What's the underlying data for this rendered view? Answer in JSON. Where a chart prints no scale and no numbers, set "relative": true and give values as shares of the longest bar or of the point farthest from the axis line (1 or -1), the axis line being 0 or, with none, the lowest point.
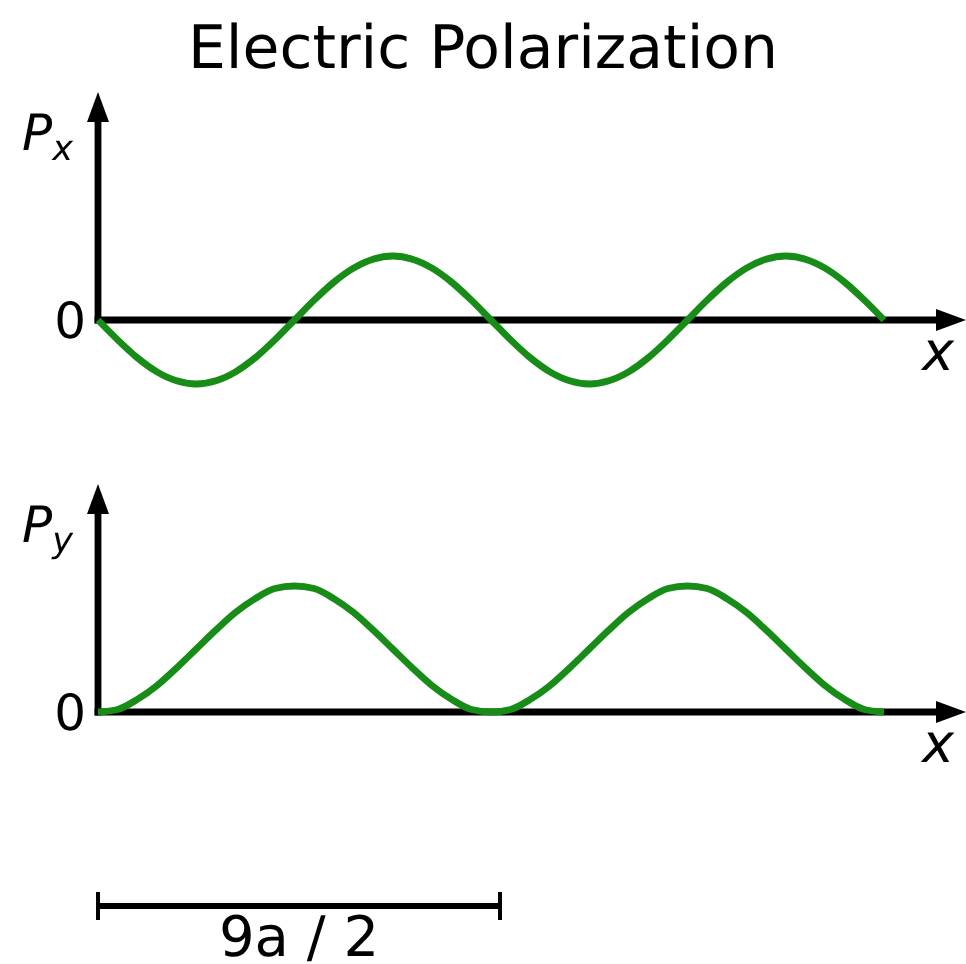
{
  "chart_data": [
    {
      "type": "line",
      "title": "Electric Polarization",
      "ylabel": "P$_{x}$",
      "xlabel": "x",
      "relative": true,
      "annotations": [
        "0"
      ],
      "categories": [
        null,
        null,
        null,
        null,
        null,
        null,
        null,
        null,
        null,
        null,
        null,
        null,
        null,
        null,
        null,
        null,
        null,
        null,
        null,
        null,
        null,
        null,
        null,
        null,
        null,
        null,
        null,
        null,
        null,
        null,
        null,
        null,
        null,
        null,
        null,
        null,
        null,
        null,
        null,
        null,
        null
      ],
      "series": [
        {
          "color": "#178c17",
          "values": [
            0,
            -0.31,
            -0.59,
            -0.81,
            -0.95,
            -1,
            -0.95,
            -0.81,
            -0.59,
            -0.31,
            0,
            0.31,
            0.59,
            0.81,
            0.95,
            1,
            0.95,
            0.81,
            0.59,
            0.31,
            0,
            -0.31,
            -0.59,
            -0.81,
            -0.95,
            -1,
            -0.95,
            -0.81,
            -0.59,
            -0.31,
            0,
            0.31,
            0.59,
            0.81,
            0.95,
            1,
            0.95,
            0.81,
            0.59,
            0.31,
            0
          ]
        }
      ]
    },
    {
      "type": "line",
      "ylabel": "P$_{y}$",
      "xlabel": "x",
      "relative": true,
      "annotations": [
        "0",
        "9a / 2"
      ],
      "categories": [
        null,
        null,
        null,
        null,
        null,
        null,
        null,
        null,
        null,
        null,
        null,
        null,
        null,
        null,
        null,
        null,
        null,
        null,
        null,
        null,
        null,
        null,
        null,
        null,
        null,
        null,
        null,
        null,
        null,
        null,
        null,
        null,
        null,
        null,
        null,
        null,
        null,
        null,
        null,
        null,
        null
      ],
      "series": [
        {
          "color": "#178c17",
          "values": [
            0,
            0.02,
            0.1,
            0.21,
            0.35,
            0.5,
            0.65,
            0.79,
            0.9,
            0.98,
            1,
            0.98,
            0.9,
            0.79,
            0.65,
            0.5,
            0.35,
            0.21,
            0.1,
            0.02,
            0,
            0.02,
            0.1,
            0.21,
            0.35,
            0.5,
            0.65,
            0.79,
            0.9,
            0.98,
            1,
            0.98,
            0.9,
            0.79,
            0.65,
            0.5,
            0.35,
            0.21,
            0.1,
            0.02,
            0
          ]
        }
      ]
    }
  ]
}
